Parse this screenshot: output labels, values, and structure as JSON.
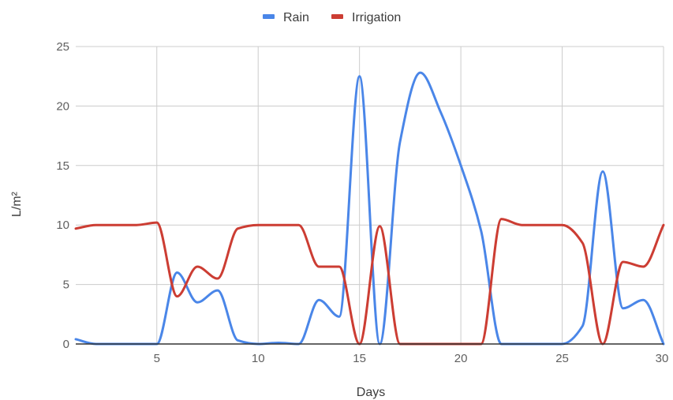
{
  "chart_data": {
    "type": "line",
    "xlabel": "Days",
    "ylabel": "L/m²",
    "xlim": [
      1,
      30
    ],
    "ylim": [
      0,
      25
    ],
    "x_ticks": [
      5,
      10,
      15,
      20,
      25,
      30
    ],
    "y_ticks": [
      0,
      5,
      10,
      15,
      20,
      25
    ],
    "grid": "on",
    "legend_position": "top",
    "series": [
      {
        "name": "Rain",
        "color": "#4a86e8",
        "points": [
          [
            1,
            0.4
          ],
          [
            2,
            0
          ],
          [
            3,
            0
          ],
          [
            4,
            0
          ],
          [
            5,
            0
          ],
          [
            6,
            6.0
          ],
          [
            7,
            3.5
          ],
          [
            8,
            4.5
          ],
          [
            9,
            0.3
          ],
          [
            10,
            0
          ],
          [
            11,
            0.1
          ],
          [
            12,
            0
          ],
          [
            13,
            3.7
          ],
          [
            14,
            2.3
          ],
          [
            15,
            22.5
          ],
          [
            16,
            0
          ],
          [
            17,
            17.0
          ],
          [
            18,
            22.8
          ],
          [
            19,
            19.5
          ],
          [
            20,
            15.0
          ],
          [
            21,
            9.5
          ],
          [
            22,
            0
          ],
          [
            23,
            0
          ],
          [
            24,
            0
          ],
          [
            25,
            0
          ],
          [
            26,
            1.5
          ],
          [
            27,
            14.5
          ],
          [
            28,
            3.0
          ],
          [
            29,
            3.7
          ],
          [
            30,
            0
          ]
        ]
      },
      {
        "name": "Irrigation",
        "color": "#cc3d33",
        "points": [
          [
            1,
            9.7
          ],
          [
            2,
            10
          ],
          [
            3,
            10
          ],
          [
            4,
            10
          ],
          [
            5,
            10.2
          ],
          [
            6,
            4.0
          ],
          [
            7,
            6.5
          ],
          [
            8,
            5.5
          ],
          [
            9,
            9.7
          ],
          [
            10,
            10
          ],
          [
            11,
            10
          ],
          [
            12,
            10
          ],
          [
            13,
            6.5
          ],
          [
            14,
            6.5
          ],
          [
            15,
            0
          ],
          [
            16,
            9.9
          ],
          [
            17,
            0
          ],
          [
            18,
            0
          ],
          [
            19,
            0
          ],
          [
            20,
            0
          ],
          [
            21,
            0
          ],
          [
            22,
            10.5
          ],
          [
            23,
            10
          ],
          [
            24,
            10
          ],
          [
            25,
            10
          ],
          [
            26,
            8.5
          ],
          [
            27,
            0
          ],
          [
            28,
            6.9
          ],
          [
            29,
            6.5
          ],
          [
            30,
            10
          ]
        ]
      }
    ]
  }
}
